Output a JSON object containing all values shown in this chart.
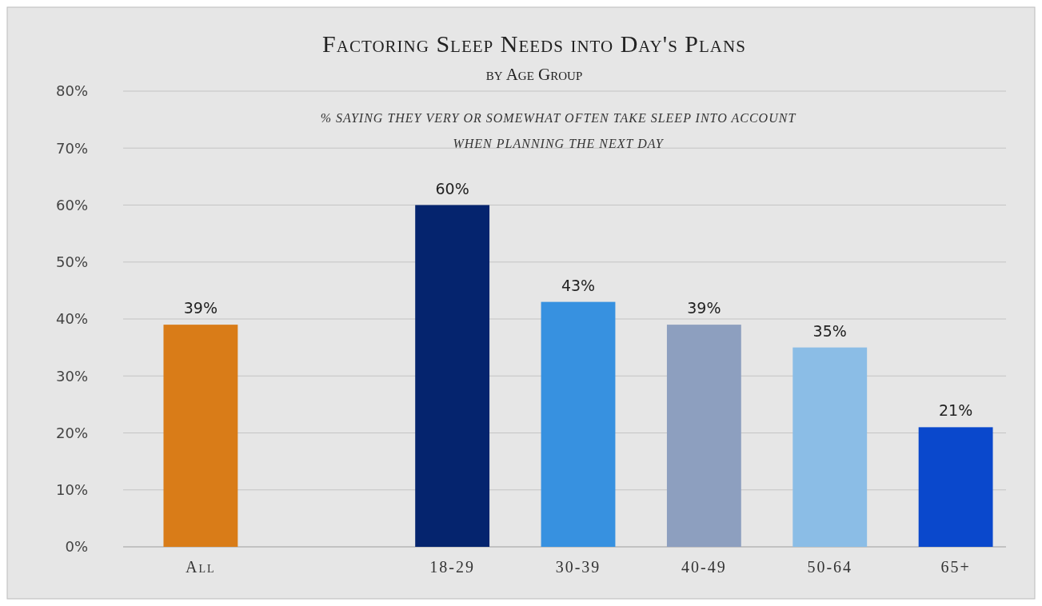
{
  "chart_data": {
    "type": "bar",
    "title": "Factoring Sleep Needs into Day's Plans",
    "subtitle": "by Age Group",
    "annotations": [
      "% SAYING THEY VERY OR SOMEWHAT OFTEN TAKE SLEEP INTO ACCOUNT WHEN PLANNING THE NEXT DAY"
    ],
    "categories": [
      "All",
      null,
      "18-29",
      "30-39",
      "40-49",
      "50-64",
      "65+"
    ],
    "values": [
      39,
      null,
      60,
      43,
      39,
      35,
      21
    ],
    "colors": [
      "#d97c18",
      null,
      "#05246e",
      "#3791e0",
      "#8d9fbf",
      "#8bbde6",
      "#0a48cc"
    ],
    "value_labels": [
      "39%",
      null,
      "60%",
      "43%",
      "39%",
      "35%",
      "21%"
    ],
    "ylim": [
      0,
      80
    ],
    "yticks": [
      {
        "value": 0,
        "label": "0%"
      },
      {
        "value": 10,
        "label": "10%"
      },
      {
        "value": 20,
        "label": "20%"
      },
      {
        "value": 30,
        "label": "30%"
      },
      {
        "value": 40,
        "label": "40%"
      },
      {
        "value": 50,
        "label": "50%"
      },
      {
        "value": 60,
        "label": "60%"
      },
      {
        "value": 70,
        "label": "70%"
      },
      {
        "value": 80,
        "label": "80%"
      }
    ],
    "grid": "y"
  }
}
